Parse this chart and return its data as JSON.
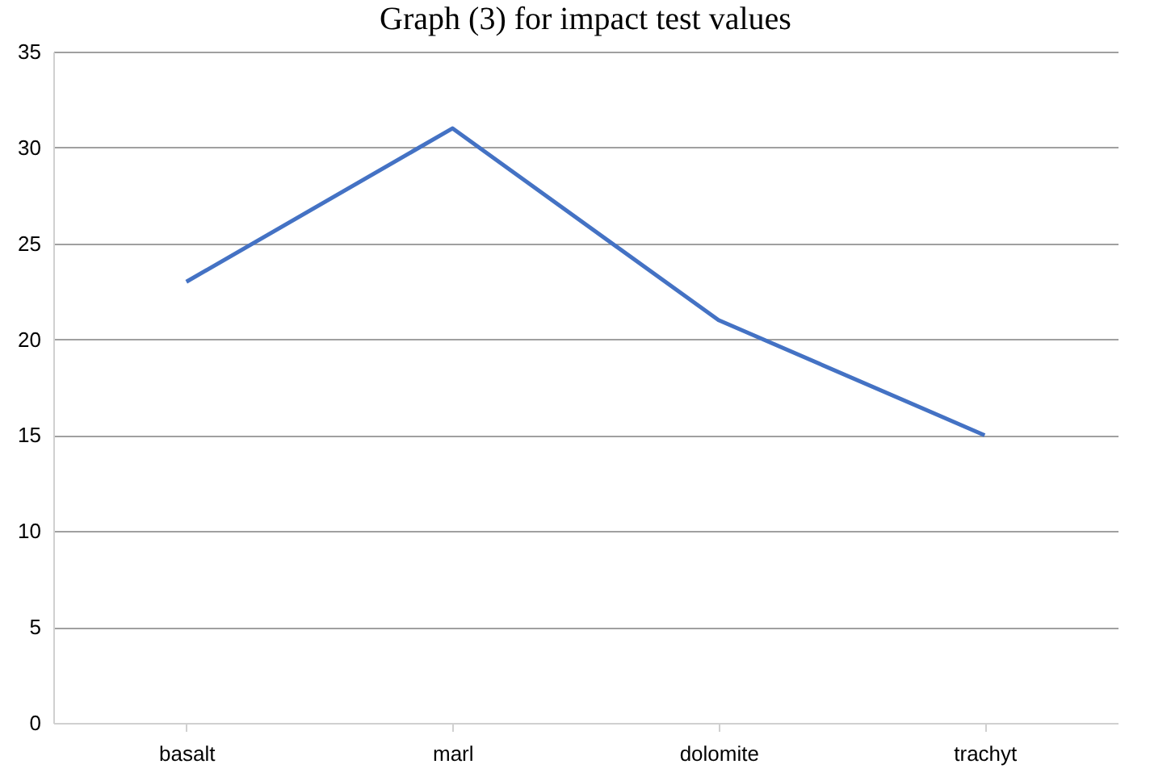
{
  "chart_data": {
    "type": "line",
    "title": "Graph (3) for impact test values",
    "categories": [
      "basalt",
      "marl",
      "dolomite",
      "trachyt"
    ],
    "series": [
      {
        "color": "#4472c4",
        "values": [
          23,
          31,
          21,
          15
        ]
      }
    ],
    "ylim": [
      0,
      35
    ],
    "yticks": [
      0,
      5,
      10,
      15,
      20,
      25,
      30,
      35
    ],
    "grid": "y",
    "legend": false,
    "marker": "none"
  }
}
